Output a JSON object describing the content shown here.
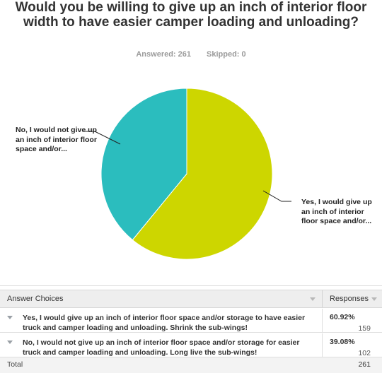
{
  "title": "Would you be willing to give up an inch of interior floor width to have easier camper loading and unloading?",
  "stats": {
    "answered": "Answered: 261",
    "skipped": "Skipped: 0"
  },
  "chart_data": {
    "type": "pie",
    "title": "Would you be willing to give up an inch of interior floor width to have easier camper loading and unloading?",
    "categories": [
      "Yes, I would give up an inch of interior floor space and/or...",
      "No, I would not give up an inch of interior floor space and/or..."
    ],
    "values": [
      60.92,
      39.08
    ],
    "colors": [
      "#cdd600",
      "#2bbdbe"
    ],
    "start": "12 o'clock",
    "direction": "clockwise"
  },
  "table": {
    "headers": {
      "choices": "Answer Choices",
      "responses": "Responses"
    },
    "rows": [
      {
        "choice": "Yes, I would give up an inch of interior floor space and/or storage to have easier truck and camper loading and unloading. Shrink the sub-wings!",
        "percent": "60.92%",
        "count": "159"
      },
      {
        "choice": "No, I would not give up an inch of interior floor space and/or storage for easier truck and camper loading and unloading. Long live the sub-wings!",
        "percent": "39.08%",
        "count": "102"
      }
    ],
    "total_label": "Total",
    "total_value": "261"
  }
}
